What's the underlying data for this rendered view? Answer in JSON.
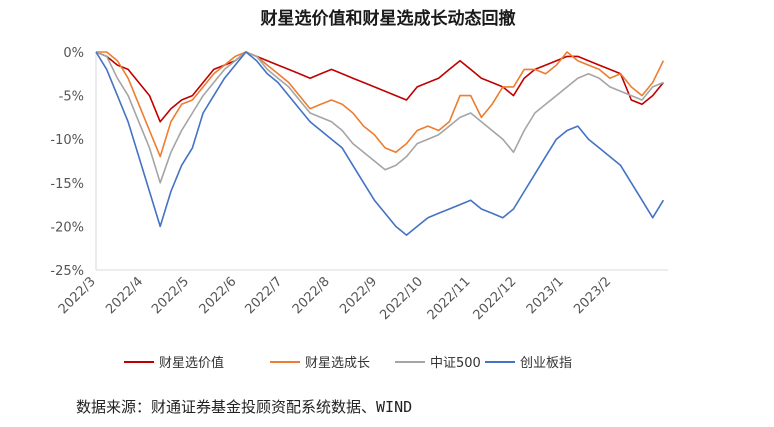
{
  "chart_data": {
    "type": "line",
    "title": "财星选价值和财星选成长动态回撤",
    "xlabel": "",
    "ylabel": "",
    "ylim": [
      -25,
      0
    ],
    "yticks": [
      "0%",
      "-5%",
      "-10%",
      "-15%",
      "-20%",
      "-25%"
    ],
    "xticks": [
      "2022/3",
      "2022/4",
      "2022/5",
      "2022/6",
      "2022/7",
      "2022/8",
      "2022/9",
      "2022/10",
      "2022/11",
      "2022/12",
      "2023/1",
      "2023/2"
    ],
    "grid": false,
    "legend": "bottom",
    "x": [
      "2022/3/1",
      "2022/3/8",
      "2022/3/15",
      "2022/3/22",
      "2022/3/29",
      "2022/4/5",
      "2022/4/12",
      "2022/4/19",
      "2022/4/26",
      "2022/5/3",
      "2022/5/10",
      "2022/5/17",
      "2022/5/24",
      "2022/5/31",
      "2022/6/7",
      "2022/6/14",
      "2022/6/21",
      "2022/6/28",
      "2022/7/5",
      "2022/7/12",
      "2022/7/19",
      "2022/7/26",
      "2022/8/2",
      "2022/8/9",
      "2022/8/16",
      "2022/8/23",
      "2022/8/30",
      "2022/9/6",
      "2022/9/13",
      "2022/9/20",
      "2022/9/27",
      "2022/10/4",
      "2022/10/11",
      "2022/10/18",
      "2022/10/25",
      "2022/11/1",
      "2022/11/8",
      "2022/11/15",
      "2022/11/22",
      "2022/11/29",
      "2022/12/6",
      "2022/12/13",
      "2022/12/20",
      "2022/12/27",
      "2023/1/3",
      "2023/1/10",
      "2023/1/17",
      "2023/1/24",
      "2023/1/31",
      "2023/2/7",
      "2023/2/14",
      "2023/2/21",
      "2023/2/28",
      "2023/3/7"
    ],
    "series": [
      {
        "name": "财星选价值",
        "color": "#c00000",
        "values": [
          0,
          -0.5,
          -1.5,
          -2,
          -3.5,
          -5,
          -8,
          -6.5,
          -5.5,
          -5,
          -3.5,
          -2,
          -1.5,
          -1,
          0,
          -0.5,
          -1,
          -1.5,
          -2,
          -2.5,
          -3,
          -2.5,
          -2,
          -2.5,
          -3,
          -3.5,
          -4,
          -4.5,
          -5,
          -5.5,
          -4,
          -3.5,
          -3,
          -2,
          -1,
          -2,
          -3,
          -3.5,
          -4,
          -5,
          -3,
          -2,
          -1.5,
          -1,
          -0.5,
          -0.5,
          -1,
          -1.5,
          -2,
          -2.5,
          -5.5,
          -6,
          -5,
          -3.5
        ]
      },
      {
        "name": "财星选成长",
        "color": "#ed7d31",
        "values": [
          0,
          0,
          -1,
          -3,
          -6,
          -9,
          -12,
          -8,
          -6,
          -5.5,
          -4,
          -2.5,
          -1.5,
          -0.5,
          0,
          -0.5,
          -1.5,
          -2.5,
          -3.5,
          -5,
          -6.5,
          -6,
          -5.5,
          -6,
          -7,
          -8.5,
          -9.5,
          -11,
          -11.5,
          -10.5,
          -9,
          -8.5,
          -9,
          -8,
          -5,
          -5,
          -7.5,
          -6,
          -4,
          -4,
          -2,
          -2,
          -2.5,
          -1.5,
          0,
          -1,
          -1.5,
          -2,
          -3,
          -2.5,
          -4,
          -5,
          -3.5,
          -1
        ]
      },
      {
        "name": "中证500",
        "color": "#a5a5a5",
        "values": [
          0,
          -0.5,
          -3,
          -5,
          -8,
          -11,
          -15,
          -11.5,
          -9,
          -7,
          -5,
          -3.5,
          -2,
          -1,
          0,
          -0.5,
          -2,
          -3,
          -4,
          -5.5,
          -7,
          -7.5,
          -8,
          -9,
          -10.5,
          -11.5,
          -12.5,
          -13.5,
          -13,
          -12,
          -10.5,
          -10,
          -9.5,
          -8.5,
          -7.5,
          -7,
          -8,
          -9,
          -10,
          -11.5,
          -9,
          -7,
          -6,
          -5,
          -4,
          -3,
          -2.5,
          -3,
          -4,
          -4.5,
          -5,
          -5.5,
          -4,
          -3.5
        ]
      },
      {
        "name": "创业板指",
        "color": "#4472c4",
        "values": [
          0,
          -2,
          -5,
          -8,
          -12,
          -16,
          -20,
          -16,
          -13,
          -11,
          -7,
          -5,
          -3,
          -1.5,
          0,
          -1,
          -2.5,
          -3.5,
          -5,
          -6.5,
          -8,
          -9,
          -10,
          -11,
          -13,
          -15,
          -17,
          -18.5,
          -20,
          -21,
          -20,
          -19,
          -18.5,
          -18,
          -17.5,
          -17,
          -18,
          -18.5,
          -19,
          -18,
          -16,
          -14,
          -12,
          -10,
          -9,
          -8.5,
          -10,
          -11,
          -12,
          -13,
          -15,
          -17,
          -19,
          -17
        ]
      }
    ]
  },
  "source_text": "数据来源：财通证券基金投顾资配系统数据、WIND"
}
